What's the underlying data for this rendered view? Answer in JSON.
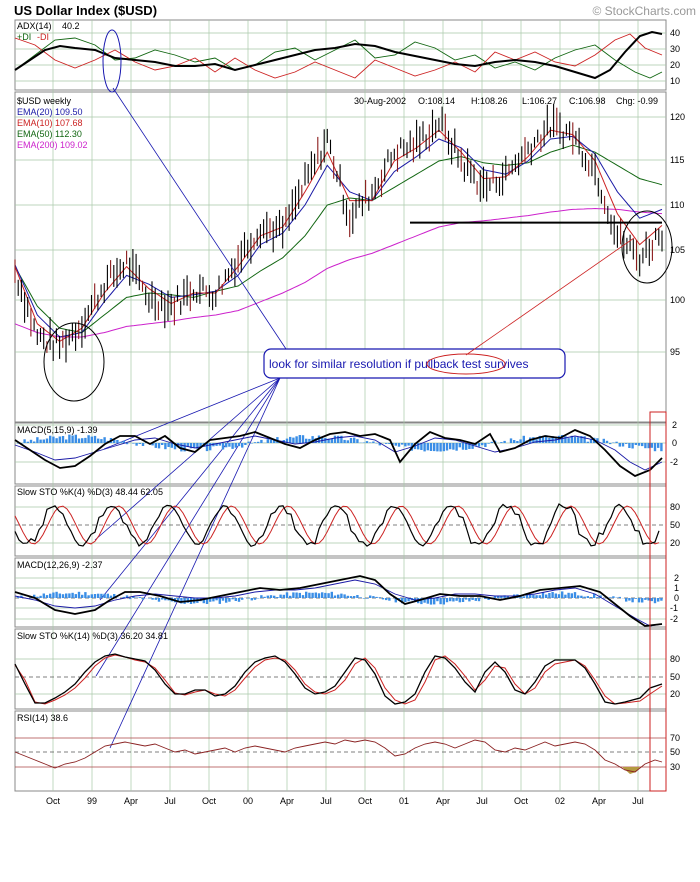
{
  "title": "US Dollar Index ($USD)",
  "watermark": "© StockCharts.com",
  "colors": {
    "background": "#ffffff",
    "grid": "#a8c8a8",
    "price": "#000000",
    "ema20": "#1a1aa6",
    "ema10": "#cc2222",
    "ema50": "#116611",
    "ema200": "#cc22cc",
    "histogram": "#3a8ee6",
    "annotation": "#1818b0",
    "pullback": "#cc2222",
    "highlight_box": "#cc2222",
    "rsi_fill": "#b49a40"
  },
  "adx_panel": {
    "label": "ADX(14)",
    "value": "40.2",
    "plus_di": "+DI",
    "minus_di": "-DI",
    "ticks": [
      "40",
      "30",
      "20",
      "10"
    ]
  },
  "price_panel": {
    "symbol": "$USD weekly",
    "header": {
      "date": "30-Aug-2002",
      "open": "O:108.14",
      "high": "H:108.26",
      "low": "L:106.27",
      "close": "C:106.98",
      "change": "Chg: -0.99"
    },
    "legend": [
      {
        "label": "EMA(20)",
        "value": "109.50",
        "color": "#1a1aa6"
      },
      {
        "label": "EMA(10)",
        "value": "107.68",
        "color": "#cc2222"
      },
      {
        "label": "EMA(50)",
        "value": "112.30",
        "color": "#116611"
      },
      {
        "label": "EMA(200)",
        "value": "109.02",
        "color": "#cc22cc"
      }
    ],
    "ticks": [
      "120",
      "115",
      "110",
      "105",
      "100",
      "95"
    ],
    "annotation": {
      "pre": "look for similar resolution if ",
      "highlight": "pullback test",
      "post": " survives"
    }
  },
  "macd_fast_panel": {
    "label": "MACD(5,15,9)",
    "value": "-1.39",
    "ticks": [
      "2",
      "0",
      "-2"
    ]
  },
  "sto_fast_panel": {
    "label": "Slow STO %K(4) %D(3)",
    "k": "48.44",
    "d": "62.05",
    "ticks": [
      "80",
      "50",
      "20"
    ]
  },
  "macd_slow_panel": {
    "label": "MACD(12,26,9)",
    "value": "-2.37",
    "ticks": [
      "2",
      "1",
      "0",
      "-1",
      "-2"
    ]
  },
  "sto_slow_panel": {
    "label": "Slow STO %K(14) %D(3)",
    "k": "36.20",
    "d": "34.81",
    "ticks": [
      "80",
      "50",
      "20"
    ]
  },
  "rsi_panel": {
    "label": "RSI(14)",
    "value": "38.6",
    "ticks": [
      "70",
      "50",
      "30"
    ]
  },
  "x_axis": [
    "Oct",
    "99",
    "Apr",
    "Jul",
    "Oct",
    "00",
    "Apr",
    "Jul",
    "Oct",
    "01",
    "Apr",
    "Jul",
    "Oct",
    "02",
    "Apr",
    "Jul"
  ],
  "chart_data": {
    "type": "line",
    "title": "US Dollar Index ($USD)",
    "x_ticks": [
      "Oct",
      "99",
      "Apr",
      "Jul",
      "Oct",
      "00",
      "Apr",
      "Jul",
      "Oct",
      "01",
      "Apr",
      "Jul",
      "Oct",
      "02",
      "Apr",
      "Jul"
    ],
    "period": "weekly",
    "x": [
      "1998-08",
      "1998-10",
      "1998-12",
      "1999-01",
      "1999-04",
      "1999-06",
      "1999-07",
      "1999-09",
      "1999-11",
      "2000-01",
      "2000-03",
      "2000-05",
      "2000-07",
      "2000-09",
      "2000-10",
      "2000-12",
      "2001-01",
      "2001-03",
      "2001-05",
      "2001-07",
      "2001-08",
      "2001-09",
      "2001-10",
      "2001-12",
      "2002-01",
      "2002-03",
      "2002-05",
      "2002-06",
      "2002-07",
      "2002-08"
    ],
    "series": [
      {
        "name": "$USD",
        "values": [
          102.5,
          95.0,
          94.0,
          96.5,
          101.0,
          103.5,
          99.5,
          98.5,
          100.5,
          100.0,
          104.0,
          107.5,
          107.0,
          112.5,
          117.5,
          108.5,
          111.5,
          116.0,
          117.0,
          119.5,
          115.0,
          112.0,
          113.5,
          116.5,
          119.0,
          118.0,
          114.0,
          106.5,
          104.0,
          107.0
        ]
      },
      {
        "name": "EMA(10)",
        "values": [
          103.0,
          96.5,
          94.5,
          96.0,
          100.0,
          103.0,
          100.5,
          98.8,
          100.0,
          100.0,
          103.0,
          106.5,
          107.5,
          111.5,
          116.0,
          110.5,
          110.5,
          115.0,
          116.5,
          118.5,
          116.0,
          113.0,
          113.2,
          115.5,
          118.5,
          118.0,
          115.0,
          109.0,
          105.5,
          107.68
        ]
      },
      {
        "name": "EMA(20)",
        "values": [
          103.2,
          97.5,
          95.0,
          95.5,
          99.0,
          102.0,
          101.0,
          99.5,
          99.8,
          100.2,
          102.0,
          105.5,
          106.8,
          110.0,
          114.5,
          111.5,
          110.5,
          113.8,
          115.5,
          117.5,
          116.5,
          114.0,
          113.5,
          115.0,
          117.5,
          117.8,
          115.8,
          111.5,
          108.5,
          109.5
        ]
      },
      {
        "name": "EMA(50)",
        "values": [
          103.0,
          98.5,
          96.0,
          95.5,
          97.5,
          99.5,
          100.0,
          99.8,
          99.5,
          100.2,
          100.8,
          102.5,
          104.0,
          106.5,
          110.0,
          110.8,
          110.5,
          112.0,
          113.5,
          115.0,
          115.5,
          114.8,
          114.5,
          114.8,
          116.0,
          116.8,
          116.0,
          114.5,
          113.0,
          112.3
        ]
      },
      {
        "name": "EMA(200)",
        "values": [
          96.5,
          95.5,
          95.0,
          95.0,
          95.5,
          96.2,
          96.5,
          96.8,
          97.2,
          97.5,
          98.0,
          99.0,
          100.0,
          101.2,
          102.8,
          103.8,
          104.5,
          105.5,
          106.5,
          107.5,
          108.0,
          108.2,
          108.5,
          108.8,
          109.2,
          109.5,
          109.6,
          109.5,
          109.2,
          109.02
        ]
      }
    ],
    "support_level": 108,
    "indicators": {
      "ADX(14)": 40.2,
      "MACD(5,15,9)": -1.39,
      "Slow STO %K(4) %D(3)": [
        48.44,
        62.05
      ],
      "MACD(12,26,9)": -2.37,
      "Slow STO %K(14) %D(3)": [
        36.2,
        34.81
      ],
      "RSI(14)": 38.6
    },
    "ylim": [
      92,
      122
    ],
    "grid": true,
    "legend": "top-left"
  }
}
